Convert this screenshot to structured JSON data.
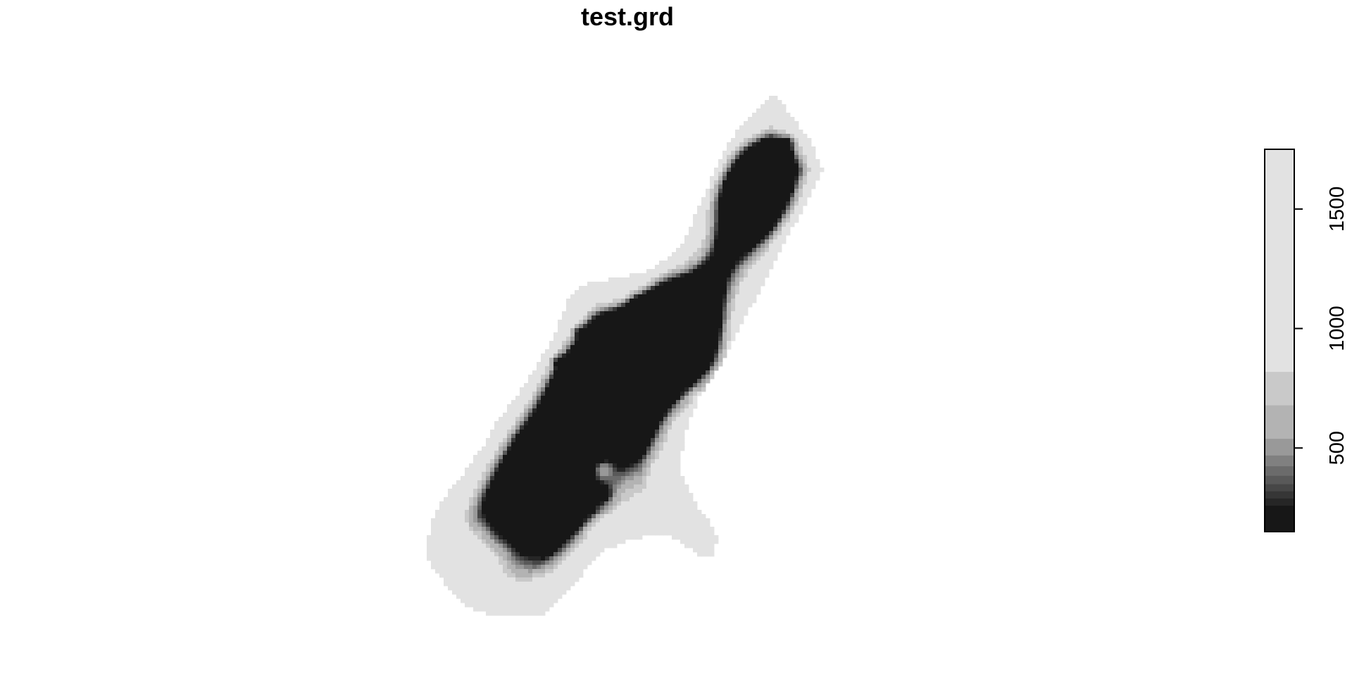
{
  "chart_data": {
    "type": "heatmap",
    "title": "test.grd",
    "xlabel": "",
    "ylabel": "",
    "axes_visible": false,
    "colormap": "grayscale",
    "legend": {
      "placement": "right",
      "orientation": "vertical",
      "range": [
        150,
        1750
      ],
      "ticks": [
        {
          "value": 500,
          "label": "500"
        },
        {
          "value": 1000,
          "label": "1000"
        },
        {
          "value": 1500,
          "label": "1500"
        }
      ],
      "color_breaks": [
        {
          "from": 150,
          "to": 260,
          "color": "#171717"
        },
        {
          "from": 260,
          "to": 290,
          "color": "#262626"
        },
        {
          "from": 290,
          "to": 320,
          "color": "#363636"
        },
        {
          "from": 320,
          "to": 350,
          "color": "#474747"
        },
        {
          "from": 350,
          "to": 385,
          "color": "#595959"
        },
        {
          "from": 385,
          "to": 425,
          "color": "#6b6b6b"
        },
        {
          "from": 425,
          "to": 470,
          "color": "#808080"
        },
        {
          "from": 470,
          "to": 540,
          "color": "#999999"
        },
        {
          "from": 540,
          "to": 680,
          "color": "#b3b3b3"
        },
        {
          "from": 680,
          "to": 820,
          "color": "#c9c9c9"
        },
        {
          "from": 820,
          "to": 1750,
          "color": "#e2e2e2"
        }
      ]
    }
  }
}
